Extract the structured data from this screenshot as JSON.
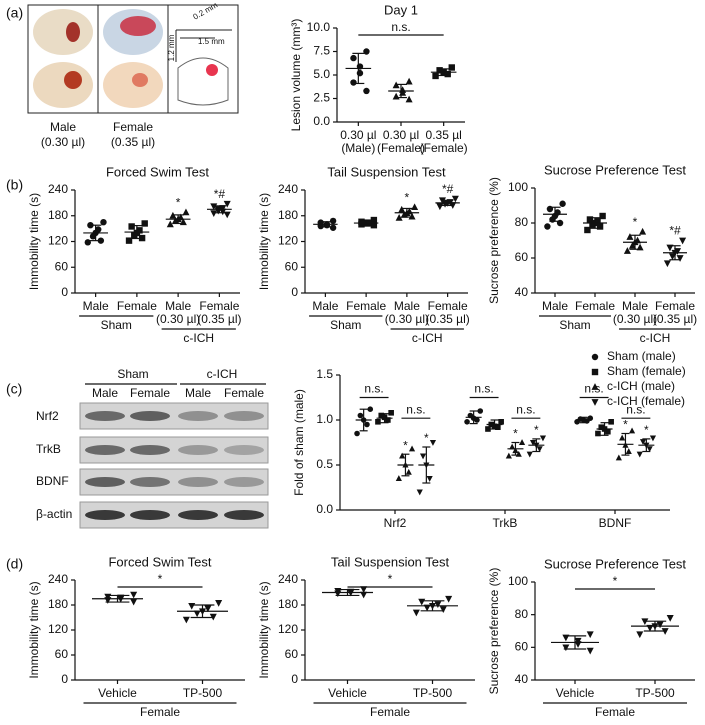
{
  "panel_labels": [
    "(a)",
    "(b)",
    "(c)",
    "(d)"
  ],
  "panel_a": {
    "labels": [
      [
        "Male",
        "(0.30 µl)"
      ],
      [
        "Female",
        "(0.35 µl)"
      ]
    ],
    "scale": [
      "0.2 mm",
      "1.5 mm",
      "1.2 mm"
    ]
  },
  "panel_c_blot": {
    "groups": [
      "Sham",
      "c-ICH"
    ],
    "lanes": [
      "Male",
      "Female",
      "Male",
      "Female"
    ],
    "rows": [
      "Nrf2",
      "TrkB",
      "BDNF",
      "β-actin"
    ]
  },
  "chart_data": [
    {
      "type": "dot",
      "title": "Day 1",
      "ylabel": "Lesion volume (mm³)",
      "ylim": [
        0,
        10
      ],
      "yticks": [
        {
          "value": 0,
          "label": "0.0"
        },
        {
          "value": 2.5,
          "label": "2.5"
        },
        {
          "value": 5,
          "label": "5.0"
        },
        {
          "value": 7.5,
          "label": "7.5"
        },
        {
          "value": 10,
          "label": "10.0"
        }
      ],
      "categories": [
        [
          "0.30 µl",
          "(Male)"
        ],
        [
          "0.30 µl",
          "(Female)"
        ],
        [
          "0.35 µl",
          "(Female)"
        ]
      ],
      "markers": [
        "circle",
        "triangle",
        "square"
      ],
      "comparison": "n.s.",
      "series": [
        {
          "values": [
            [
              7.5,
              6.8,
              5.9,
              5.2,
              4.2,
              3.3
            ],
            [
              4.3,
              3.9,
              3.4,
              3.1,
              2.7,
              2.4
            ],
            [
              5.8,
              5.5,
              5.3,
              5.1,
              4.9
            ]
          ],
          "mean": [
            5.7,
            3.3,
            5.3
          ],
          "sd": [
            1.6,
            0.7,
            0.35
          ]
        }
      ]
    },
    {
      "type": "dot",
      "title": "Forced Swim Test",
      "ylabel": "Immobility time (s)",
      "ylim": [
        0,
        240
      ],
      "yticks": [
        0,
        60,
        120,
        180,
        240
      ],
      "categories": [
        [
          "Male"
        ],
        [
          "Female"
        ],
        [
          "Male",
          "(0.30 µl)"
        ],
        [
          "Female",
          "(0.35 µl)"
        ]
      ],
      "groups": [
        "Sham",
        "c-ICH"
      ],
      "markers": [
        "circle",
        "square",
        "triangle",
        "triangle-down"
      ],
      "stars": [
        null,
        null,
        "*",
        "*#"
      ],
      "series": [
        {
          "values": [
            [
              165,
              158,
              148,
              140,
              132,
              122,
              118
            ],
            [
              162,
              155,
              146,
              140,
              134,
              128,
              122
            ],
            [
              188,
              180,
              176,
              172,
              168,
              165,
              160
            ],
            [
              208,
              202,
              198,
              195,
              192,
              190,
              186,
              183
            ]
          ],
          "mean": [
            140,
            142,
            172,
            195
          ],
          "sd": [
            18,
            15,
            10,
            8
          ]
        }
      ]
    },
    {
      "type": "dot",
      "title": "Tail Suspension Test",
      "ylabel": "Immobility time (s)",
      "ylim": [
        0,
        240
      ],
      "yticks": [
        0,
        60,
        120,
        180,
        240
      ],
      "categories": [
        [
          "Male"
        ],
        [
          "Female"
        ],
        [
          "Male",
          "(0.30 µl)"
        ],
        [
          "Female",
          "(0.35 µl)"
        ]
      ],
      "groups": [
        "Sham",
        "c-ICH"
      ],
      "markers": [
        "circle",
        "square",
        "triangle",
        "triangle-down"
      ],
      "stars": [
        null,
        null,
        "*",
        "*#"
      ],
      "series": [
        {
          "values": [
            [
              168,
              164,
              160,
              158,
              156,
              152
            ],
            [
              170,
              166,
              164,
              162,
              160,
              158
            ],
            [
              200,
              194,
              190,
              186,
              182,
              178,
              175
            ],
            [
              220,
              216,
              212,
              210,
              208,
              205,
              202
            ]
          ],
          "mean": [
            160,
            163,
            187,
            210
          ],
          "sd": [
            6,
            5,
            10,
            6
          ]
        }
      ]
    },
    {
      "type": "dot",
      "title": "Sucrose Preference Test",
      "ylabel": "Sucrose preference (%)",
      "ylim": [
        40,
        100
      ],
      "yticks": [
        40,
        60,
        80,
        100
      ],
      "categories": [
        [
          "Male"
        ],
        [
          "Female"
        ],
        [
          "Male",
          "(0.30 µl)"
        ],
        [
          "Female",
          "(0.35 µl)"
        ]
      ],
      "groups": [
        "Sham",
        "c-ICH"
      ],
      "markers": [
        "circle",
        "square",
        "triangle",
        "triangle-down"
      ],
      "stars": [
        null,
        null,
        "*",
        "*#"
      ],
      "series": [
        {
          "values": [
            [
              91,
              88,
              86,
              84,
              82,
              80,
              78
            ],
            [
              84,
              82,
              81,
              80,
              79,
              78,
              76
            ],
            [
              75,
              72,
              70,
              69,
              67,
              66,
              64
            ],
            [
              70,
              66,
              64,
              63,
              61,
              60,
              57
            ]
          ],
          "mean": [
            85,
            80,
            69,
            63
          ],
          "sd": [
            4,
            3,
            4,
            4
          ]
        }
      ]
    },
    {
      "type": "dot",
      "ylabel": "Fold of sham (male)",
      "ylim": [
        0,
        1.5
      ],
      "yticks": [
        {
          "value": 0,
          "label": "0.0"
        },
        {
          "value": 0.5,
          "label": "0.5"
        },
        {
          "value": 1,
          "label": "1.0"
        },
        {
          "value": 1.5,
          "label": "1.5"
        }
      ],
      "categories": [
        [
          "Nrf2"
        ],
        [
          "TrkB"
        ],
        [
          "BDNF"
        ]
      ],
      "legend": "upper right",
      "comparisons": [
        [
          "n.s.",
          "n.s."
        ],
        [
          "n.s.",
          "n.s."
        ],
        [
          "n.s.",
          "n.s."
        ]
      ],
      "series": [
        {
          "name": "Sham (male)",
          "marker": "circle",
          "values": [
            [
              1.12,
              1.05,
              1.0,
              0.95,
              0.85
            ],
            [
              1.1,
              1.05,
              1.02,
              1.0,
              0.98
            ],
            [
              1.02,
              1.01,
              1.0,
              0.99,
              0.98
            ]
          ],
          "mean": [
            1.0,
            1.03,
            1.0
          ],
          "sd": [
            0.12,
            0.07,
            0.03
          ]
        },
        {
          "name": "Sham (female)",
          "marker": "square",
          "values": [
            [
              1.08,
              1.05,
              1.03,
              1.0,
              0.98
            ],
            [
              0.98,
              0.95,
              0.93,
              0.92,
              0.9
            ],
            [
              0.98,
              0.92,
              0.9,
              0.87,
              0.85
            ]
          ],
          "mean": [
            1.02,
            0.95,
            0.9
          ],
          "sd": [
            0.05,
            0.05,
            0.07
          ]
        },
        {
          "name": "c-ICH (male)",
          "marker": "triangle",
          "values": [
            [
              0.68,
              0.6,
              0.5,
              0.42,
              0.35
            ],
            [
              0.75,
              0.7,
              0.66,
              0.62,
              0.6
            ],
            [
              0.88,
              0.8,
              0.72,
              0.65,
              0.58
            ]
          ],
          "mean": [
            0.5,
            0.68,
            0.73
          ],
          "sd": [
            0.12,
            0.07,
            0.12
          ],
          "stars": [
            "*",
            "*",
            "*"
          ]
        },
        {
          "name": "c-ICH (female)",
          "marker": "triangle-down",
          "values": [
            [
              0.75,
              0.6,
              0.5,
              0.35,
              0.2
            ],
            [
              0.8,
              0.75,
              0.72,
              0.68,
              0.62
            ],
            [
              0.8,
              0.76,
              0.72,
              0.68,
              0.62
            ]
          ],
          "mean": [
            0.5,
            0.72,
            0.72
          ],
          "sd": [
            0.2,
            0.07,
            0.07
          ],
          "stars": [
            "*",
            "*",
            "*"
          ]
        }
      ]
    },
    {
      "type": "dot",
      "title": "Forced Swim Test",
      "ylabel": "Immobility time (s)",
      "ylim": [
        0,
        240
      ],
      "yticks": [
        0,
        60,
        120,
        180,
        240
      ],
      "categories": [
        [
          "Vehicle"
        ],
        [
          "TP-500"
        ]
      ],
      "groups": [
        "Female"
      ],
      "markers": [
        "triangle-down",
        "triangle-down"
      ],
      "comparison": "*",
      "series": [
        {
          "values": [
            [
              205,
              200,
              198,
              195,
              192,
              188
            ],
            [
              185,
              178,
              172,
              165,
              160,
              152,
              145
            ]
          ],
          "mean": [
            195,
            165
          ],
          "sd": [
            8,
            15
          ]
        }
      ]
    },
    {
      "type": "dot",
      "title": "Tail Suspension Test",
      "ylabel": "Immobility time (s)",
      "ylim": [
        0,
        240
      ],
      "yticks": [
        0,
        60,
        120,
        180,
        240
      ],
      "categories": [
        [
          "Vehicle"
        ],
        [
          "TP-500"
        ]
      ],
      "groups": [
        "Female"
      ],
      "markers": [
        "triangle-down",
        "triangle-down"
      ],
      "comparison": "*",
      "series": [
        {
          "values": [
            [
              218,
              214,
              212,
              210,
              208,
              205
            ],
            [
              195,
              188,
              182,
              178,
              174,
              170,
              162
            ]
          ],
          "mean": [
            210,
            178
          ],
          "sd": [
            7,
            12
          ]
        }
      ]
    },
    {
      "type": "dot",
      "title": "Sucrose Preference Test",
      "ylabel": "Sucrose preference (%)",
      "ylim": [
        40,
        100
      ],
      "yticks": [
        40,
        60,
        80,
        100
      ],
      "categories": [
        [
          "Vehicle"
        ],
        [
          "TP-500"
        ]
      ],
      "groups": [
        "Female"
      ],
      "markers": [
        "triangle-down",
        "triangle-down"
      ],
      "comparison": "*",
      "series": [
        {
          "values": [
            [
              68,
              66,
              64,
              62,
              60,
              58
            ],
            [
              78,
              76,
              74,
              73,
              72,
              70,
              68
            ]
          ],
          "mean": [
            63,
            73
          ],
          "sd": [
            4,
            3
          ]
        }
      ]
    }
  ]
}
